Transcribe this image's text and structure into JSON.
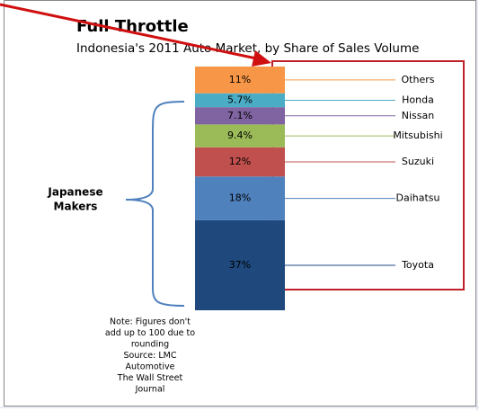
{
  "chart_data": {
    "type": "stacked-bar",
    "title": "Full Throttle",
    "subtitle": "Indonesia's 2011 Auto Market, by Share of Sales Volume",
    "categories": [
      "Toyota",
      "Daihatsu",
      "Suzuki",
      "Mitsubishi",
      "Nissan",
      "Honda",
      "Others"
    ],
    "values": [
      37,
      18,
      12,
      9.4,
      7.1,
      5.7,
      11
    ],
    "value_labels": [
      "37%",
      "18%",
      "12%",
      "9.4%",
      "7.1%",
      "5.7%",
      "11%"
    ],
    "colors": [
      "#1f497d",
      "#4f81bd",
      "#c0504d",
      "#9bbb59",
      "#8064a2",
      "#4bacc6",
      "#f79646"
    ],
    "group_label": [
      "Japanese",
      "Makers"
    ],
    "note": [
      "Note: Figures don't",
      "add up to 100 due to",
      "rounding",
      "Source: LMC",
      "Automotive",
      "The Wall Street",
      "Journal"
    ]
  }
}
